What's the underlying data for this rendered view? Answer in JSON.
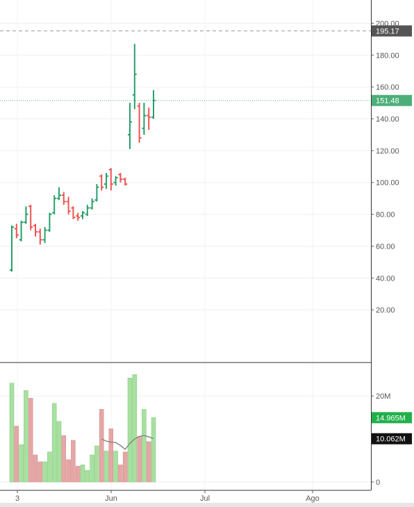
{
  "chart_data": [
    {
      "type": "ohlc",
      "panel": "price",
      "x_ticks": [
        "3",
        "Jun",
        "Jul",
        "Ago"
      ],
      "y_ticks": [
        "200.00",
        "180.00",
        "160.00",
        "140.00",
        "120.00",
        "100.00",
        "80.00",
        "60.00",
        "40.00",
        "20.00"
      ],
      "ylim": [
        0,
        205
      ],
      "grid": true,
      "high_line": {
        "value": 195.17,
        "label": "195.17",
        "color": "#555555"
      },
      "last_price": {
        "value": 151.48,
        "label": "151.48",
        "color": "#4caf7a"
      },
      "colors": {
        "up": "#26a06a",
        "down": "#ef5350"
      },
      "bars": [
        {
          "o": 45,
          "h": 73,
          "l": 44,
          "c": 72
        },
        {
          "o": 71,
          "h": 74,
          "l": 65,
          "c": 67
        },
        {
          "o": 64,
          "h": 76,
          "l": 63,
          "c": 75
        },
        {
          "o": 75,
          "h": 85,
          "l": 74,
          "c": 80
        },
        {
          "o": 85,
          "h": 86,
          "l": 70,
          "c": 72
        },
        {
          "o": 73,
          "h": 74,
          "l": 66,
          "c": 69
        },
        {
          "o": 69,
          "h": 71,
          "l": 61,
          "c": 64
        },
        {
          "o": 64,
          "h": 72,
          "l": 62,
          "c": 70
        },
        {
          "o": 70,
          "h": 81,
          "l": 69,
          "c": 80
        },
        {
          "o": 81,
          "h": 92,
          "l": 80,
          "c": 90
        },
        {
          "o": 90,
          "h": 97,
          "l": 89,
          "c": 92
        },
        {
          "o": 92,
          "h": 94,
          "l": 86,
          "c": 88
        },
        {
          "o": 88,
          "h": 91,
          "l": 80,
          "c": 82
        },
        {
          "o": 84,
          "h": 85,
          "l": 77,
          "c": 78
        },
        {
          "o": 79,
          "h": 81,
          "l": 76,
          "c": 78
        },
        {
          "o": 79,
          "h": 82,
          "l": 77,
          "c": 81
        },
        {
          "o": 80,
          "h": 86,
          "l": 79,
          "c": 84
        },
        {
          "o": 84,
          "h": 90,
          "l": 83,
          "c": 88
        },
        {
          "o": 89,
          "h": 99,
          "l": 88,
          "c": 97
        },
        {
          "o": 104,
          "h": 105,
          "l": 95,
          "c": 97
        },
        {
          "o": 99,
          "h": 106,
          "l": 96,
          "c": 104
        },
        {
          "o": 108,
          "h": 109,
          "l": 95,
          "c": 99
        },
        {
          "o": 100,
          "h": 104,
          "l": 98,
          "c": 103
        },
        {
          "o": 105,
          "h": 106,
          "l": 100,
          "c": 102
        },
        {
          "o": 102,
          "h": 103,
          "l": 98,
          "c": 99
        },
        {
          "o": 130,
          "h": 150,
          "l": 121,
          "c": 138
        },
        {
          "o": 155,
          "h": 187,
          "l": 146,
          "c": 168
        },
        {
          "o": 148,
          "h": 150,
          "l": 125,
          "c": 128
        },
        {
          "o": 134,
          "h": 150,
          "l": 130,
          "c": 142
        },
        {
          "o": 142,
          "h": 147,
          "l": 133,
          "c": 141
        },
        {
          "o": 141,
          "h": 158,
          "l": 140,
          "c": 151.48
        }
      ]
    },
    {
      "type": "bar",
      "panel": "volume",
      "y_ticks": [
        "20M",
        "0"
      ],
      "ylim": [
        0,
        26500000
      ],
      "volume_badge": {
        "value": 14965000,
        "label": "14.965M",
        "color": "#22b04a"
      },
      "ma_badge": {
        "value": 10062000,
        "label": "10.062M",
        "color": "#111111"
      },
      "colors": {
        "up": "#a8e0a0",
        "down": "#e6a6a6",
        "ma": "#888888"
      },
      "values": [
        23000000,
        13000000,
        8700000,
        21300000,
        19500000,
        6300000,
        4700000,
        4700000,
        7000000,
        18300000,
        14100000,
        10800000,
        5200000,
        9700000,
        3700000,
        4000000,
        2700000,
        6300000,
        8400000,
        16900000,
        7200000,
        12400000,
        7200000,
        4000000,
        7000000,
        24200000,
        25000000,
        10600000,
        16900000,
        9400000,
        14965000
      ],
      "ma_values": [
        null,
        null,
        null,
        null,
        null,
        null,
        null,
        null,
        null,
        null,
        null,
        null,
        null,
        null,
        null,
        null,
        null,
        null,
        null,
        10000000,
        9500000,
        9300000,
        9200000,
        8500000,
        7600000,
        9000000,
        10000000,
        10600000,
        10800000,
        10500000,
        10062000
      ]
    }
  ]
}
